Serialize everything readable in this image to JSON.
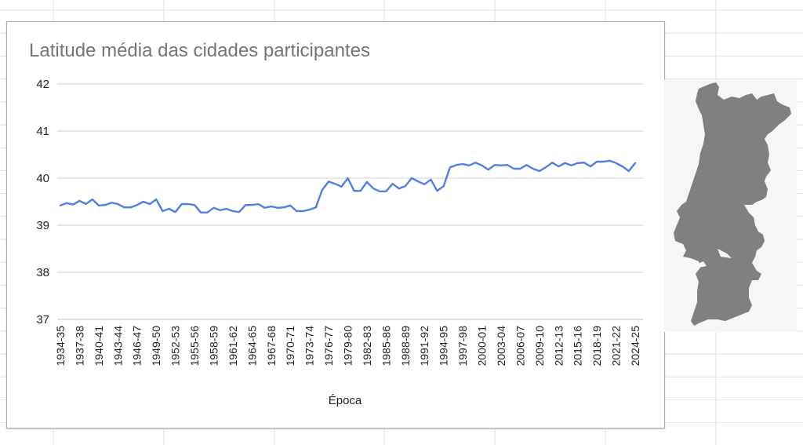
{
  "chart_data": {
    "type": "line",
    "title": "Latitude média das cidades participantes",
    "xlabel": "Época",
    "ylabel": "",
    "ylim": [
      37,
      42
    ],
    "yticks": [
      37,
      38,
      39,
      40,
      41,
      42
    ],
    "grid": true,
    "legend": "none",
    "line_color": "#4f7fe0",
    "x": [
      "1934-35",
      "1935-36",
      "1936-37",
      "1937-38",
      "1938-39",
      "1939-40",
      "1940-41",
      "1941-42",
      "1942-43",
      "1943-44",
      "1944-45",
      "1945-46",
      "1946-47",
      "1947-48",
      "1948-49",
      "1949-50",
      "1950-51",
      "1951-52",
      "1952-53",
      "1953-54",
      "1954-55",
      "1955-56",
      "1956-57",
      "1957-58",
      "1958-59",
      "1959-60",
      "1960-61",
      "1961-62",
      "1962-63",
      "1963-64",
      "1964-65",
      "1965-66",
      "1966-67",
      "1967-68",
      "1968-69",
      "1969-70",
      "1970-71",
      "1971-72",
      "1972-73",
      "1973-74",
      "1974-75",
      "1975-76",
      "1976-77",
      "1977-78",
      "1978-79",
      "1979-80",
      "1980-81",
      "1981-82",
      "1982-83",
      "1983-84",
      "1984-85",
      "1985-86",
      "1986-87",
      "1987-88",
      "1988-89",
      "1989-90",
      "1990-91",
      "1991-92",
      "1992-93",
      "1993-94",
      "1994-95",
      "1995-96",
      "1996-97",
      "1997-98",
      "1998-99",
      "1999-00",
      "2000-01",
      "2001-02",
      "2002-03",
      "2003-04",
      "2004-05",
      "2005-06",
      "2006-07",
      "2007-08",
      "2008-09",
      "2009-10",
      "2010-11",
      "2011-12",
      "2012-13",
      "2013-14",
      "2014-15",
      "2015-16",
      "2016-17",
      "2017-18",
      "2018-19",
      "2019-20",
      "2020-21",
      "2021-22",
      "2022-23",
      "2023-24",
      "2024-25"
    ],
    "tick_labels": [
      "1934-35",
      "1937-38",
      "1940-41",
      "1943-44",
      "1946-47",
      "1949-50",
      "1952-53",
      "1955-56",
      "1958-59",
      "1961-62",
      "1964-65",
      "1967-68",
      "1970-71",
      "1973-74",
      "1976-77",
      "1979-80",
      "1982-83",
      "1985-86",
      "1988-89",
      "1991-92",
      "1994-95",
      "1997-98",
      "2000-01",
      "2003-04",
      "2006-07",
      "2009-10",
      "2012-13",
      "2015-16",
      "2018-19",
      "2021-22",
      "2024-25"
    ],
    "series": [
      {
        "name": "Latitude média",
        "values": [
          39.42,
          39.47,
          39.44,
          39.52,
          39.45,
          39.55,
          39.42,
          39.43,
          39.48,
          39.45,
          39.38,
          39.38,
          39.43,
          39.5,
          39.45,
          39.55,
          39.3,
          39.35,
          39.28,
          39.45,
          39.45,
          39.43,
          39.27,
          39.27,
          39.37,
          39.32,
          39.35,
          39.3,
          39.28,
          39.43,
          39.43,
          39.45,
          39.37,
          39.4,
          39.37,
          39.38,
          39.42,
          39.3,
          39.3,
          39.33,
          39.38,
          39.75,
          39.93,
          39.88,
          39.82,
          40.0,
          39.73,
          39.73,
          39.92,
          39.78,
          39.72,
          39.72,
          39.88,
          39.78,
          39.83,
          40.0,
          39.93,
          39.87,
          39.97,
          39.73,
          39.83,
          40.23,
          40.28,
          40.3,
          40.27,
          40.33,
          40.27,
          40.18,
          40.28,
          40.27,
          40.28,
          40.2,
          40.2,
          40.28,
          40.2,
          40.15,
          40.23,
          40.33,
          40.25,
          40.32,
          40.27,
          40.32,
          40.33,
          40.25,
          40.35,
          40.35,
          40.37,
          40.32,
          40.25,
          40.15,
          40.32
        ]
      }
    ]
  },
  "map": {
    "label": "portugal-map",
    "fill": "#808080",
    "background": "#f6f6f6"
  },
  "colors": {
    "gridline": "#d0d0d0",
    "sheet_grid": "#e2e2e2",
    "title": "#757575"
  }
}
